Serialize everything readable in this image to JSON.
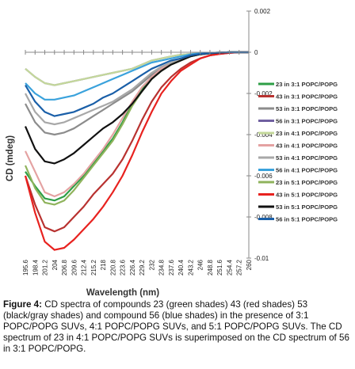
{
  "caption": {
    "label": "Figure 4:",
    "text": "CD spectra of compounds 23 (green shades) 43 (red shades) 53 (black/gray shades) and compound 56 (blue shades) in the presence of 3:1 POPC/POPG SUVs, 4:1 POPC/POPG SUVs, and 5:1 POPC/POPG SUVs. The CD spectrum of 23 in 4:1 POPC/POPG SUVs is superimposed on the CD spectrum of 56 in 3:1 POPC/POPG."
  },
  "chart_data": {
    "type": "line",
    "title": "",
    "xlabel": "Wavelength (nm)",
    "ylabel": "CD (mdeg)",
    "x": [
      195.6,
      198.4,
      201.2,
      204,
      206.8,
      209.6,
      212.4,
      215.2,
      218,
      220.8,
      223.6,
      226.4,
      229.2,
      232,
      234.8,
      237.6,
      240.4,
      243.2,
      246,
      248.8,
      251.6,
      254.4,
      257.2,
      260
    ],
    "x_tick_labels": [
      "195.6",
      "198.4",
      "201.2",
      "204",
      "206.8",
      "209.6",
      "212.4",
      "215.2",
      "218",
      "220.8",
      "223.6",
      "226.4",
      "229.2",
      "232",
      "234.8",
      "237.6",
      "240.4",
      "243.2",
      "246",
      "248.8",
      "251.6",
      "254.4",
      "257.2",
      "260"
    ],
    "ylim": [
      -0.01,
      0.002
    ],
    "y_ticks": [
      0.002,
      0,
      -0.002,
      -0.004,
      -0.006,
      -0.008,
      -0.01
    ],
    "y_tick_labels": [
      "0.002",
      "0",
      "-0.002",
      "-0.004",
      "-0.006",
      "-0.008",
      "-0.01"
    ],
    "grid": false,
    "legend_position": "right",
    "series": [
      {
        "name": "23 in 3:1 POPC/POPG",
        "color": "#2e9e46",
        "values": [
          -0.0058,
          -0.0065,
          -0.0071,
          -0.0072,
          -0.007,
          -0.0065,
          -0.006,
          -0.0054,
          -0.0048,
          -0.0042,
          -0.0034,
          -0.0025,
          -0.0018,
          -0.0012,
          -0.0008,
          -0.0005,
          -0.0003,
          -0.0002,
          -0.0001,
          -5e-05,
          -2e-05,
          0,
          0,
          0
        ]
      },
      {
        "name": "43 in 3:1 POPC/POPG",
        "color": "#b83230",
        "values": [
          -0.006,
          -0.0074,
          -0.0085,
          -0.0087,
          -0.0085,
          -0.008,
          -0.0075,
          -0.0069,
          -0.0064,
          -0.0059,
          -0.0052,
          -0.0043,
          -0.0033,
          -0.0024,
          -0.0017,
          -0.0012,
          -0.0008,
          -0.0005,
          -0.0003,
          -0.00015,
          -8e-05,
          -3e-05,
          0,
          0
        ]
      },
      {
        "name": "53 in 3:1 POPC/POPG",
        "color": "#8c8c8c",
        "values": [
          -0.0025,
          -0.0034,
          -0.0039,
          -0.004,
          -0.0039,
          -0.0037,
          -0.0034,
          -0.0031,
          -0.0028,
          -0.0025,
          -0.0022,
          -0.0019,
          -0.0015,
          -0.0011,
          -0.0008,
          -0.0005,
          -0.0003,
          -0.0002,
          -0.0001,
          -5e-05,
          -2e-05,
          0,
          0,
          0
        ]
      },
      {
        "name": "56 in 3:1 POPC/POPG",
        "color": "#7060a0",
        "values": [
          -0.0008,
          -0.0012,
          -0.0015,
          -0.0016,
          -0.0015,
          -0.0014,
          -0.0013,
          -0.0012,
          -0.0011,
          -0.001,
          -0.0009,
          -0.0008,
          -0.0006,
          -0.0004,
          -0.0003,
          -0.0002,
          -0.00012,
          -8e-05,
          -5e-05,
          -3e-05,
          -1e-05,
          0,
          0,
          0
        ]
      },
      {
        "name": "23 in 4:1 POPC/POPG",
        "color": "#c4d89a",
        "values": [
          -0.0008,
          -0.0012,
          -0.0015,
          -0.0016,
          -0.0015,
          -0.0014,
          -0.0013,
          -0.0012,
          -0.0011,
          -0.001,
          -0.0009,
          -0.0008,
          -0.0006,
          -0.0004,
          -0.0003,
          -0.0002,
          -0.00012,
          -8e-05,
          -5e-05,
          -3e-05,
          -1e-05,
          0,
          0,
          0
        ]
      },
      {
        "name": "43 in 4:1 POPC/POPG",
        "color": "#e4a2a2",
        "values": [
          -0.0048,
          -0.0058,
          -0.0068,
          -0.007,
          -0.0068,
          -0.0064,
          -0.0059,
          -0.0053,
          -0.0047,
          -0.004,
          -0.0032,
          -0.0024,
          -0.0017,
          -0.0012,
          -0.0008,
          -0.0005,
          -0.0003,
          -0.00018,
          -0.0001,
          -5e-05,
          -2e-05,
          0,
          0,
          0
        ]
      },
      {
        "name": "53 in 4:1 POPC/POPG",
        "color": "#a8a8a8",
        "values": [
          -0.002,
          -0.0029,
          -0.0034,
          -0.0035,
          -0.0034,
          -0.0032,
          -0.003,
          -0.0028,
          -0.0026,
          -0.0024,
          -0.0021,
          -0.0018,
          -0.0014,
          -0.001,
          -0.0007,
          -0.0005,
          -0.0003,
          -0.0002,
          -0.0001,
          -5e-05,
          -2e-05,
          0,
          0,
          0
        ]
      },
      {
        "name": "56 in 4:1 POPC/POPG",
        "color": "#3aa2dc",
        "values": [
          -0.0015,
          -0.002,
          -0.0023,
          -0.0023,
          -0.0022,
          -0.0021,
          -0.0019,
          -0.0017,
          -0.0015,
          -0.0013,
          -0.0011,
          -0.0009,
          -0.0007,
          -0.0005,
          -0.0004,
          -0.0003,
          -0.0002,
          -0.0001,
          -5e-05,
          -3e-05,
          -1e-05,
          0,
          0,
          0
        ]
      },
      {
        "name": "23 in 5:1 POPC/POPG",
        "color": "#8fb35c",
        "values": [
          -0.0055,
          -0.0066,
          -0.0073,
          -0.0074,
          -0.0072,
          -0.0067,
          -0.0061,
          -0.0055,
          -0.0049,
          -0.0043,
          -0.0035,
          -0.0026,
          -0.0019,
          -0.0013,
          -0.0009,
          -0.0006,
          -0.0004,
          -0.0002,
          -0.0001,
          -5e-05,
          -2e-05,
          0,
          0,
          0
        ]
      },
      {
        "name": "43  in 5:1 POPC/POPG",
        "color": "#e8221f",
        "values": [
          -0.006,
          -0.0078,
          -0.0092,
          -0.0096,
          -0.0095,
          -0.0091,
          -0.0086,
          -0.0081,
          -0.0075,
          -0.0068,
          -0.006,
          -0.005,
          -0.0039,
          -0.0029,
          -0.002,
          -0.0014,
          -0.0009,
          -0.0006,
          -0.0003,
          -0.00015,
          -8e-05,
          -3e-05,
          0,
          0
        ]
      },
      {
        "name": "53  in 5:1 POPC/POPG",
        "color": "#111111",
        "values": [
          -0.0036,
          -0.0047,
          -0.0053,
          -0.0054,
          -0.0052,
          -0.0049,
          -0.0045,
          -0.0041,
          -0.0037,
          -0.0034,
          -0.003,
          -0.0025,
          -0.0019,
          -0.0013,
          -0.0009,
          -0.0006,
          -0.0004,
          -0.0002,
          -0.0001,
          -5e-05,
          -2e-05,
          0,
          0,
          0
        ]
      },
      {
        "name": "56  in 5:1 POPC/POPG",
        "color": "#1a5fa8",
        "values": [
          -0.0016,
          -0.0024,
          -0.0029,
          -0.0031,
          -0.003,
          -0.0029,
          -0.0027,
          -0.0025,
          -0.0022,
          -0.002,
          -0.0017,
          -0.0014,
          -0.0011,
          -0.0008,
          -0.0006,
          -0.0004,
          -0.0003,
          -0.00015,
          -8e-05,
          -4e-05,
          -1e-05,
          0,
          0,
          0
        ]
      }
    ]
  }
}
